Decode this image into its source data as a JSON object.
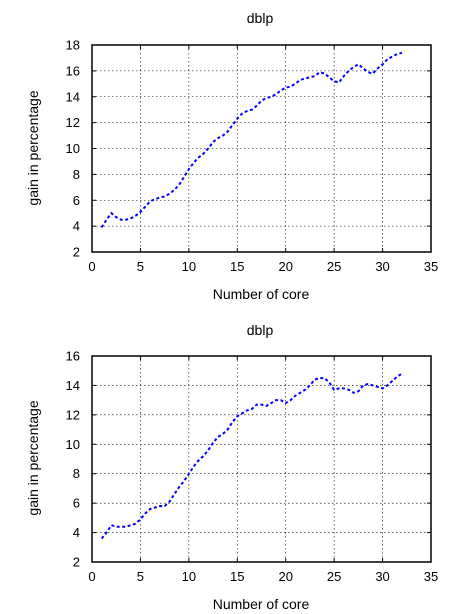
{
  "chart_data": [
    {
      "type": "line",
      "title": "dblp",
      "xlabel": "Number of core",
      "ylabel": "gain in percentage",
      "xlim": [
        0,
        35
      ],
      "ylim": [
        2,
        18
      ],
      "xticks": [
        "0",
        "5",
        "10",
        "15",
        "20",
        "25",
        "30",
        "35"
      ],
      "yticks": [
        "2",
        "4",
        "6",
        "8",
        "10",
        "12",
        "14",
        "16",
        "18"
      ],
      "grid": true,
      "series": [
        {
          "color": "#0000ff",
          "x": [
            1,
            1.5,
            2,
            2.5,
            3,
            3.5,
            4,
            4.5,
            5,
            5.5,
            6,
            6.5,
            7,
            7.5,
            8,
            8.5,
            9,
            9.5,
            10,
            10.5,
            11,
            11.5,
            12,
            12.5,
            13,
            13.5,
            14,
            14.5,
            15,
            15.5,
            16,
            16.5,
            17,
            17.5,
            18,
            18.5,
            19,
            19.5,
            20,
            20.5,
            21,
            21.5,
            22,
            22.5,
            23,
            23.5,
            24,
            24.5,
            25,
            25.5,
            26,
            26.5,
            27,
            27.5,
            28,
            28.5,
            29,
            29.5,
            30,
            30.5,
            31,
            31.5,
            32
          ],
          "y": [
            3.9,
            4.5,
            5.0,
            4.7,
            4.5,
            4.5,
            4.6,
            4.8,
            5.1,
            5.5,
            5.9,
            6.1,
            6.2,
            6.3,
            6.5,
            6.8,
            7.2,
            7.8,
            8.4,
            8.9,
            9.3,
            9.6,
            10.0,
            10.5,
            10.8,
            11.0,
            11.3,
            11.8,
            12.3,
            12.7,
            12.9,
            13.0,
            13.3,
            13.7,
            13.9,
            14.0,
            14.2,
            14.5,
            14.7,
            14.8,
            15.0,
            15.3,
            15.4,
            15.5,
            15.6,
            15.9,
            15.8,
            15.5,
            15.2,
            15.1,
            15.6,
            16.0,
            16.3,
            16.5,
            16.2,
            15.9,
            15.8,
            16.2,
            16.5,
            16.9,
            17.1,
            17.3,
            17.4
          ]
        }
      ]
    },
    {
      "type": "line",
      "title": "dblp",
      "xlabel": "Number of core",
      "ylabel": "gain in percentage",
      "xlim": [
        0,
        35
      ],
      "ylim": [
        2,
        16
      ],
      "xticks": [
        "0",
        "5",
        "10",
        "15",
        "20",
        "25",
        "30",
        "35"
      ],
      "yticks": [
        "2",
        "4",
        "6",
        "8",
        "10",
        "12",
        "14",
        "16"
      ],
      "grid": true,
      "series": [
        {
          "color": "#0000ff",
          "x": [
            1,
            1.5,
            2,
            2.5,
            3,
            3.5,
            4,
            4.5,
            5,
            5.5,
            6,
            6.5,
            7,
            7.5,
            8,
            8.5,
            9,
            9.5,
            10,
            10.5,
            11,
            11.5,
            12,
            12.5,
            13,
            13.5,
            14,
            14.5,
            15,
            15.5,
            16,
            16.5,
            17,
            17.5,
            18,
            18.5,
            19,
            19.5,
            20,
            20.5,
            21,
            21.5,
            22,
            22.5,
            23,
            23.5,
            24,
            24.5,
            25,
            25.5,
            26,
            26.5,
            27,
            27.5,
            28,
            28.5,
            29,
            29.5,
            30,
            30.5,
            31,
            31.5,
            32
          ],
          "y": [
            3.6,
            4.0,
            4.5,
            4.4,
            4.4,
            4.4,
            4.5,
            4.6,
            4.9,
            5.3,
            5.6,
            5.7,
            5.8,
            5.8,
            6.1,
            6.6,
            7.1,
            7.5,
            8.0,
            8.5,
            8.9,
            9.2,
            9.6,
            10.1,
            10.5,
            10.7,
            11.0,
            11.5,
            11.9,
            12.1,
            12.3,
            12.4,
            12.7,
            12.7,
            12.6,
            12.8,
            13.0,
            13.0,
            12.8,
            13.0,
            13.3,
            13.5,
            13.7,
            14.0,
            14.4,
            14.5,
            14.5,
            14.2,
            13.7,
            13.8,
            13.8,
            13.7,
            13.5,
            13.6,
            14.0,
            14.1,
            14.0,
            13.9,
            13.8,
            14.0,
            14.3,
            14.6,
            14.8
          ]
        }
      ]
    }
  ]
}
